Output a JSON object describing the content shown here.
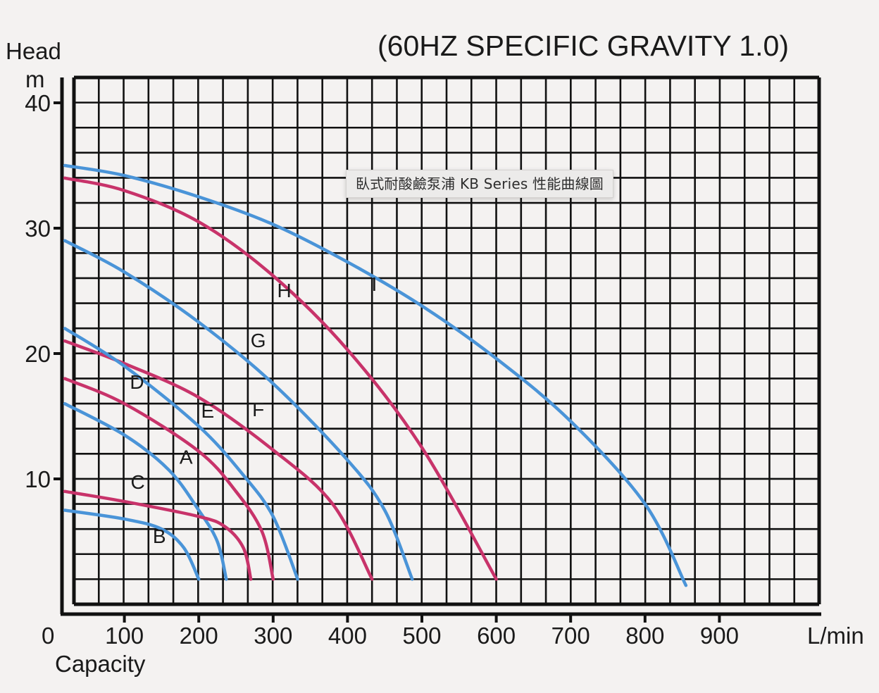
{
  "tooltip": {
    "text": "臥式耐酸鹼泵浦 KB Series 性能曲線圖"
  },
  "colors": {
    "blue": "#4a94d8",
    "red": "#c8336a",
    "grid": "#111111",
    "background": "#f4f2f1"
  },
  "chart_data": {
    "type": "line",
    "title": "(60HZ SPECIFIC GRAVITY 1.0)",
    "xlabel": "Capacity",
    "xunit": "L/min",
    "ylabel": "Head",
    "yunit": "m",
    "xlim": [
      0,
      1000
    ],
    "ylim": [
      0,
      42
    ],
    "grid": true,
    "x_ticks": [
      0,
      100,
      200,
      300,
      400,
      500,
      600,
      700,
      800,
      900
    ],
    "y_ticks": [
      10,
      20,
      30,
      40
    ],
    "series": [
      {
        "name": "I",
        "color": "blue",
        "label_at": [
          436,
          25
        ],
        "points": [
          [
            20,
            35
          ],
          [
            100,
            34.2
          ],
          [
            200,
            32.5
          ],
          [
            300,
            30.3
          ],
          [
            400,
            27.3
          ],
          [
            500,
            23.8
          ],
          [
            600,
            19.6
          ],
          [
            700,
            14.6
          ],
          [
            800,
            8.0
          ],
          [
            855,
            1.5
          ]
        ]
      },
      {
        "name": "H",
        "color": "red",
        "label_at": [
          315,
          24.5
        ],
        "points": [
          [
            20,
            34
          ],
          [
            100,
            33
          ],
          [
            200,
            30.5
          ],
          [
            300,
            26.2
          ],
          [
            400,
            20.3
          ],
          [
            500,
            12.5
          ],
          [
            600,
            2
          ]
        ]
      },
      {
        "name": "G",
        "color": "blue",
        "label_at": [
          280,
          20.5
        ],
        "points": [
          [
            20,
            29
          ],
          [
            100,
            26.5
          ],
          [
            200,
            22.5
          ],
          [
            300,
            17.6
          ],
          [
            400,
            11.5
          ],
          [
            450,
            7.5
          ],
          [
            487,
            2
          ]
        ]
      },
      {
        "name": "F",
        "color": "red",
        "label_at": [
          280,
          15.0
        ],
        "points": [
          [
            20,
            21
          ],
          [
            100,
            19.2
          ],
          [
            200,
            16.5
          ],
          [
            300,
            12.3
          ],
          [
            380,
            8.0
          ],
          [
            433,
            2
          ]
        ]
      },
      {
        "name": "E",
        "color": "blue",
        "label_at": [
          212,
          14.9
        ],
        "points": [
          [
            20,
            22
          ],
          [
            100,
            19.0
          ],
          [
            200,
            14.2
          ],
          [
            260,
            10.3
          ],
          [
            300,
            7.0
          ],
          [
            333,
            2
          ]
        ]
      },
      {
        "name": "D",
        "color": "red",
        "label_at": [
          117,
          17.2
        ],
        "points": [
          [
            20,
            18
          ],
          [
            100,
            16.0
          ],
          [
            200,
            12.2
          ],
          [
            250,
            9.0
          ],
          [
            285,
            5.8
          ],
          [
            300,
            2
          ]
        ]
      },
      {
        "name": "A",
        "color": "blue",
        "label_at": [
          183,
          11.2
        ],
        "points": [
          [
            20,
            16
          ],
          [
            100,
            13.5
          ],
          [
            160,
            10.7
          ],
          [
            200,
            7.5
          ],
          [
            225,
            5.0
          ],
          [
            237,
            2
          ]
        ]
      },
      {
        "name": "C",
        "color": "red",
        "label_at": [
          118,
          9.2
        ],
        "points": [
          [
            20,
            9
          ],
          [
            100,
            8.2
          ],
          [
            200,
            7.0
          ],
          [
            235,
            6.2
          ],
          [
            260,
            4.5
          ],
          [
            270,
            2
          ]
        ]
      },
      {
        "name": "B",
        "color": "blue",
        "label_at": [
          147,
          4.9
        ],
        "points": [
          [
            20,
            7.5
          ],
          [
            100,
            6.8
          ],
          [
            150,
            6.0
          ],
          [
            180,
            4.5
          ],
          [
            200,
            2
          ]
        ]
      }
    ]
  },
  "labels": {
    "title": "(60HZ SPECIFIC GRAVITY 1.0)",
    "y_name": "Head",
    "y_unit": "m",
    "x_name": "Capacity",
    "x_unit": "L/min",
    "x_zero": "0"
  }
}
